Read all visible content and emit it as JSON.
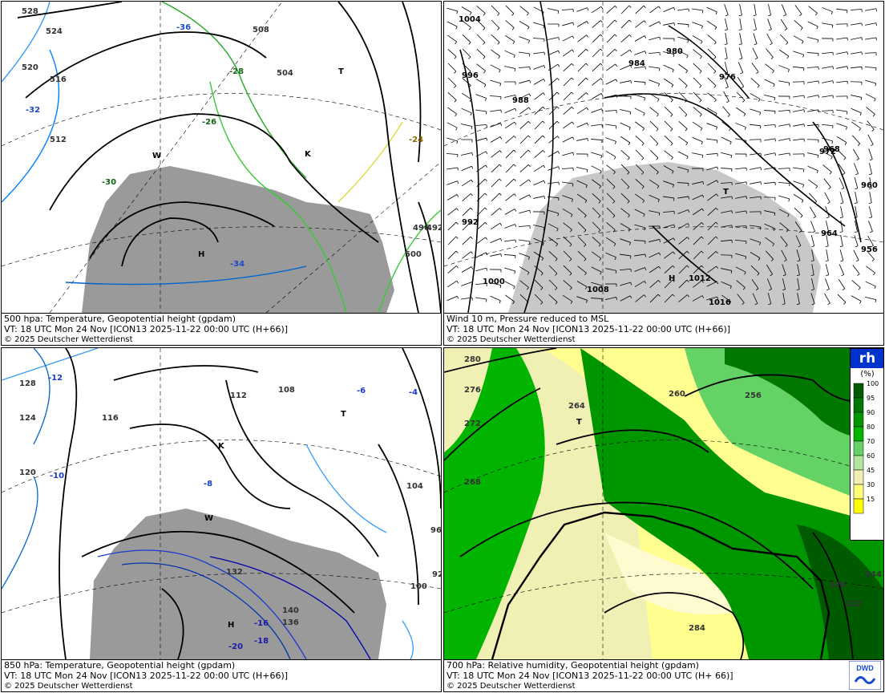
{
  "panels": [
    {
      "caption_line1": "500 hpa: Temperature, Geopotential height (gpdam)",
      "caption_line2": "VT: 18 UTC Mon  24 Nov [ICON13 2025-11-22 00:00 UTC  (H+66)]",
      "copyright": "© 2025 Deutscher Wetterdienst",
      "height_labels": [
        "528",
        "524",
        "520",
        "516",
        "512",
        "508",
        "504",
        "500",
        "496",
        "492"
      ],
      "temp_labels": [
        "-36",
        "-34",
        "-32",
        "-30",
        "-28",
        "-26",
        "-24"
      ],
      "markers": [
        "H",
        "T",
        "K",
        "W"
      ]
    },
    {
      "caption_line1": "Wind 10 m, Pressure reduced to MSL",
      "caption_line2": "VT: 18 UTC Mon  24 Nov [ICON13 2025-11-22 00:00 UTC (H+66)]",
      "copyright": "© 2025 Deutscher Wetterdienst",
      "pressure_labels": [
        "1016",
        "1012",
        "1008",
        "1004",
        "1000",
        "996",
        "992",
        "988",
        "984",
        "980",
        "976",
        "972",
        "968",
        "964",
        "960",
        "956"
      ],
      "markers": [
        "H",
        "T"
      ]
    },
    {
      "caption_line1": "850 hPa:  Temperature, Geopotential height (gpdam)",
      "caption_line2": "VT: 18 UTC Mon  24 Nov [ICON13 2025-11-22 00:00 UTC (H+66)]",
      "copyright": "© 2025 Deutscher Wetterdienst",
      "height_labels": [
        "140",
        "136",
        "132",
        "128",
        "124",
        "120",
        "116",
        "112",
        "108",
        "104",
        "100",
        "96",
        "92"
      ],
      "temp_labels": [
        "-20",
        "-18",
        "-16",
        "-12",
        "-10",
        "-8",
        "-6",
        "-4"
      ],
      "markers": [
        "H",
        "T",
        "K",
        "W"
      ]
    },
    {
      "caption_line1": "700 hPa:  Relative humidity, Geopotential height (gpdam)",
      "caption_line2": "VT: 18 UTC Mon  24 Nov [ICON13 2025-11-22 00:00 UTC (H+ 66)]",
      "copyright": "© 2025 Deutscher Wetterdienst",
      "height_labels": [
        "284",
        "280",
        "276",
        "272",
        "268",
        "264",
        "260",
        "256",
        "252",
        "248",
        "244"
      ],
      "markers": [
        "T"
      ],
      "legend": {
        "title": "rh",
        "unit": "(%)",
        "levels": [
          "100",
          "95",
          "90",
          "80",
          "70",
          "60",
          "45",
          "30",
          "15"
        ],
        "colors": [
          "#005a00",
          "#007800",
          "#009600",
          "#00b400",
          "#64d264",
          "#b4e6a0",
          "#f0f0b4",
          "#ffff78",
          "#ffff00"
        ]
      },
      "logo_text": "DWD"
    }
  ],
  "colors": {
    "land_gray": "#9a9a9a",
    "land_gray_light": "#c8c8c8",
    "contour": "#000000"
  }
}
